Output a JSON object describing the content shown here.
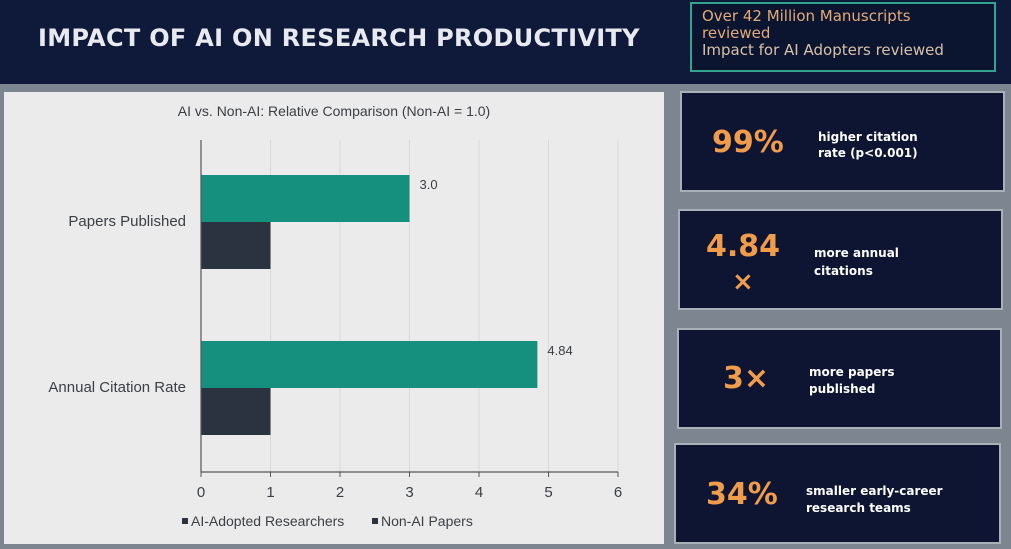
{
  "header": {
    "title": "IMPACT OF AI ON RESEARCH PRODUCTIVITY",
    "info_line1": "Over 42 Million Manuscripts",
    "info_line2": "reviewed",
    "info_line3": "Impact for AI Adopters reviewed"
  },
  "stats": [
    {
      "value": "99%",
      "desc1": "higher citation",
      "desc2": "rate (p<0.001)"
    },
    {
      "value": "4.84",
      "value2": "×",
      "desc1": "more annual",
      "desc2": "citations"
    },
    {
      "value": "3×",
      "desc1": "more papers",
      "desc2": "published"
    },
    {
      "value": "34%",
      "desc1": "smaller early-career",
      "desc2": "research teams"
    }
  ],
  "colors": {
    "ai_series": "#15907f",
    "non_ai_series": "#2b3341",
    "accent": "#f09c4a",
    "header_bg": "#0f1a3b"
  },
  "chart_data": {
    "type": "bar",
    "orientation": "horizontal",
    "title": "AI vs. Non-AI: Relative Comparison (Non-AI = 1.0)",
    "categories": [
      "Papers Published",
      "Annual Citation Rate"
    ],
    "series": [
      {
        "name": "AI-Adopted Researchers",
        "values": [
          3.0,
          4.84
        ],
        "labels": [
          "3.0",
          "4.84"
        ]
      },
      {
        "name": "Non-AI Papers",
        "values": [
          1.0,
          1.0
        ]
      }
    ],
    "xlim": [
      0,
      6
    ],
    "xticks": [
      "0",
      "1",
      "2",
      "3",
      "4",
      "5",
      "6"
    ],
    "grid": "vertical",
    "legend": "bottom"
  }
}
